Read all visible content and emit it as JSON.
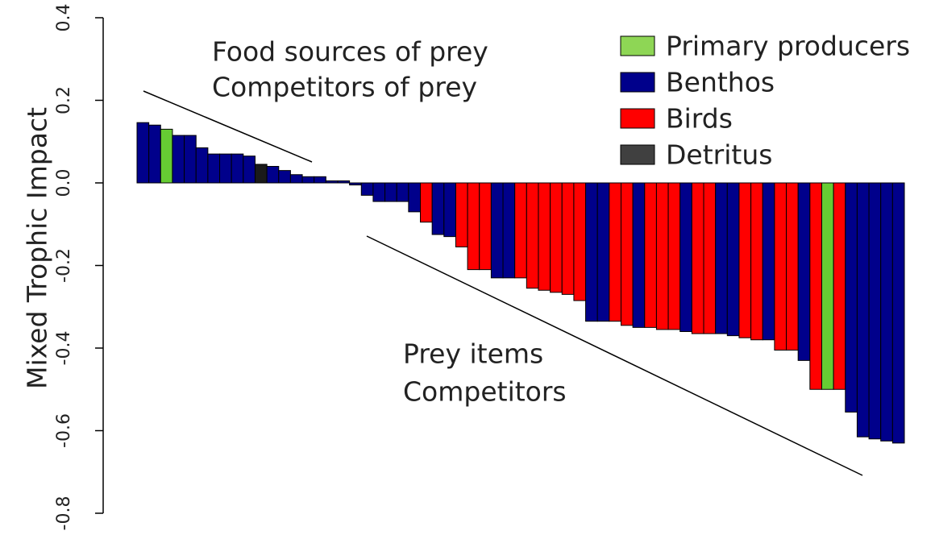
{
  "chart_data": {
    "type": "bar",
    "ylabel": "Mixed Trophic Impact",
    "ylim": [
      -0.8,
      0.4
    ],
    "yticks": [
      -0.8,
      -0.6,
      -0.4,
      -0.2,
      {
        "value": 0,
        "label": "0.0"
      },
      0.2,
      0.4
    ],
    "values": [
      0.146,
      0.14,
      0.13,
      0.115,
      0.115,
      0.085,
      0.07,
      0.07,
      0.07,
      0.065,
      0.045,
      0.04,
      0.03,
      0.02,
      0.015,
      0.015,
      0.005,
      0.005,
      -0.005,
      -0.03,
      -0.045,
      -0.045,
      -0.045,
      -0.07,
      -0.095,
      -0.125,
      -0.13,
      -0.155,
      -0.21,
      -0.21,
      -0.23,
      -0.23,
      -0.23,
      -0.255,
      -0.26,
      -0.265,
      -0.27,
      -0.285,
      -0.335,
      -0.335,
      -0.335,
      -0.345,
      -0.35,
      -0.35,
      -0.355,
      -0.355,
      -0.36,
      -0.365,
      -0.365,
      -0.365,
      -0.37,
      -0.375,
      -0.38,
      -0.38,
      -0.405,
      -0.405,
      -0.43,
      -0.5,
      -0.5,
      -0.5,
      -0.555,
      -0.615,
      -0.62,
      -0.625,
      -0.63
    ],
    "colors": [
      "#00008b",
      "#00008b",
      "#66cc33",
      "#00008b",
      "#00008b",
      "#00008b",
      "#00008b",
      "#00008b",
      "#00008b",
      "#00008b",
      "#1a1a1a",
      "#00008b",
      "#00008b",
      "#00008b",
      "#00008b",
      "#00008b",
      "#00008b",
      "#00008b",
      "#00008b",
      "#00008b",
      "#00008b",
      "#00008b",
      "#00008b",
      "#00008b",
      "#ff0000",
      "#00008b",
      "#00008b",
      "#ff0000",
      "#ff0000",
      "#ff0000",
      "#00008b",
      "#00008b",
      "#ff0000",
      "#ff0000",
      "#ff0000",
      "#ff0000",
      "#ff0000",
      "#ff0000",
      "#00008b",
      "#00008b",
      "#ff0000",
      "#ff0000",
      "#00008b",
      "#ff0000",
      "#ff0000",
      "#ff0000",
      "#00008b",
      "#ff0000",
      "#ff0000",
      "#00008b",
      "#00008b",
      "#ff0000",
      "#ff0000",
      "#00008b",
      "#ff0000",
      "#ff0000",
      "#00008b",
      "#ff0000",
      "#66cc33",
      "#ff0000",
      "#00008b",
      "#00008b",
      "#00008b",
      "#00008b",
      "#00008b"
    ],
    "legend": [
      {
        "name": "Primary producers",
        "color": "#8ed655"
      },
      {
        "name": "Benthos",
        "color": "#00008b"
      },
      {
        "name": "Birds",
        "color": "#ff0000"
      },
      {
        "name": "Detritus",
        "color": "#404040"
      }
    ],
    "annotations": [
      "Food sources of prey",
      "Competitors of prey",
      "Prey items",
      "Competitors"
    ]
  }
}
